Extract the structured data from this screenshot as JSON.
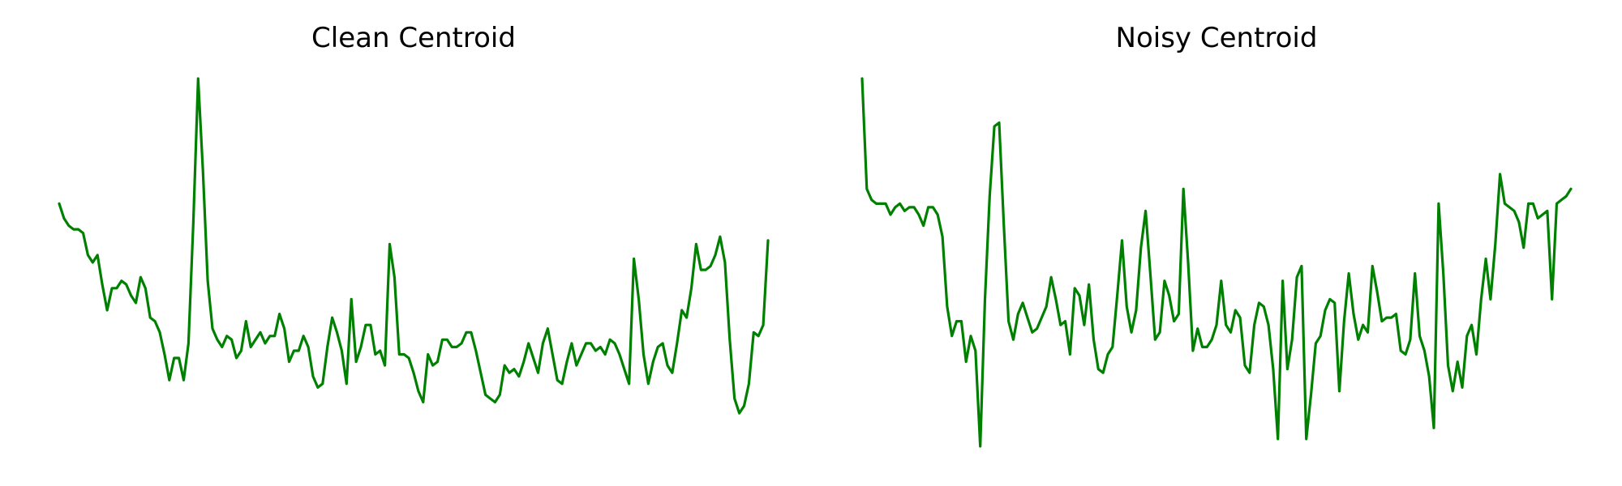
{
  "chart_data": [
    {
      "type": "line",
      "title": "Clean Centroid",
      "xlabel": "",
      "ylabel": "",
      "axes_visible": false,
      "grid": false,
      "color": "#008000",
      "series": [
        {
          "values": [
            0.66,
            0.62,
            0.6,
            0.59,
            0.59,
            0.58,
            0.52,
            0.5,
            0.52,
            0.44,
            0.37,
            0.43,
            0.43,
            0.45,
            0.44,
            0.41,
            0.39,
            0.46,
            0.43,
            0.35,
            0.34,
            0.31,
            0.25,
            0.18,
            0.24,
            0.24,
            0.18,
            0.28,
            0.61,
            1.0,
            0.75,
            0.45,
            0.32,
            0.29,
            0.27,
            0.3,
            0.29,
            0.24,
            0.26,
            0.34,
            0.27,
            0.29,
            0.31,
            0.28,
            0.3,
            0.3,
            0.36,
            0.32,
            0.23,
            0.26,
            0.26,
            0.3,
            0.27,
            0.19,
            0.16,
            0.17,
            0.27,
            0.35,
            0.31,
            0.26,
            0.17,
            0.4,
            0.23,
            0.27,
            0.33,
            0.33,
            0.25,
            0.26,
            0.22,
            0.55,
            0.46,
            0.25,
            0.25,
            0.24,
            0.2,
            0.15,
            0.12,
            0.25,
            0.22,
            0.23,
            0.29,
            0.29,
            0.27,
            0.27,
            0.28,
            0.31,
            0.31,
            0.26,
            0.2,
            0.14,
            0.13,
            0.12,
            0.14,
            0.22,
            0.2,
            0.21,
            0.19,
            0.23,
            0.28,
            0.24,
            0.2,
            0.28,
            0.32,
            0.25,
            0.18,
            0.17,
            0.23,
            0.28,
            0.22,
            0.25,
            0.28,
            0.28,
            0.26,
            0.27,
            0.25,
            0.29,
            0.28,
            0.25,
            0.21,
            0.17,
            0.51,
            0.4,
            0.25,
            0.17,
            0.23,
            0.27,
            0.28,
            0.22,
            0.2,
            0.28,
            0.37,
            0.35,
            0.43,
            0.55,
            0.48,
            0.48,
            0.49,
            0.52,
            0.57,
            0.5,
            0.29,
            0.13,
            0.09,
            0.11,
            0.17,
            0.31,
            0.3,
            0.33,
            0.56
          ]
        }
      ]
    },
    {
      "type": "line",
      "title": "Noisy Centroid",
      "xlabel": "",
      "ylabel": "",
      "axes_visible": false,
      "grid": false,
      "color": "#008000",
      "series": [
        {
          "values": [
            1.0,
            0.7,
            0.67,
            0.66,
            0.66,
            0.66,
            0.63,
            0.65,
            0.66,
            0.64,
            0.65,
            0.65,
            0.63,
            0.6,
            0.65,
            0.65,
            0.63,
            0.57,
            0.38,
            0.3,
            0.34,
            0.34,
            0.23,
            0.3,
            0.26,
            0.0,
            0.4,
            0.68,
            0.87,
            0.88,
            0.6,
            0.34,
            0.29,
            0.36,
            0.39,
            0.35,
            0.31,
            0.32,
            0.35,
            0.38,
            0.46,
            0.4,
            0.33,
            0.34,
            0.25,
            0.43,
            0.41,
            0.33,
            0.44,
            0.29,
            0.21,
            0.2,
            0.25,
            0.27,
            0.41,
            0.56,
            0.38,
            0.31,
            0.37,
            0.54,
            0.64,
            0.47,
            0.29,
            0.31,
            0.45,
            0.41,
            0.34,
            0.36,
            0.7,
            0.5,
            0.26,
            0.32,
            0.27,
            0.27,
            0.29,
            0.33,
            0.45,
            0.33,
            0.31,
            0.37,
            0.35,
            0.22,
            0.2,
            0.33,
            0.39,
            0.38,
            0.33,
            0.21,
            0.02,
            0.45,
            0.21,
            0.29,
            0.46,
            0.49,
            0.02,
            0.14,
            0.28,
            0.3,
            0.37,
            0.4,
            0.39,
            0.15,
            0.34,
            0.47,
            0.36,
            0.29,
            0.33,
            0.31,
            0.49,
            0.42,
            0.34,
            0.35,
            0.35,
            0.36,
            0.26,
            0.25,
            0.29,
            0.47,
            0.3,
            0.26,
            0.19,
            0.05,
            0.66,
            0.47,
            0.22,
            0.15,
            0.23,
            0.16,
            0.3,
            0.33,
            0.25,
            0.4,
            0.51,
            0.4,
            0.55,
            0.74,
            0.66,
            0.65,
            0.64,
            0.61,
            0.54,
            0.66,
            0.66,
            0.62,
            0.63,
            0.64,
            0.4,
            0.66,
            0.67,
            0.68,
            0.7
          ]
        }
      ]
    }
  ]
}
